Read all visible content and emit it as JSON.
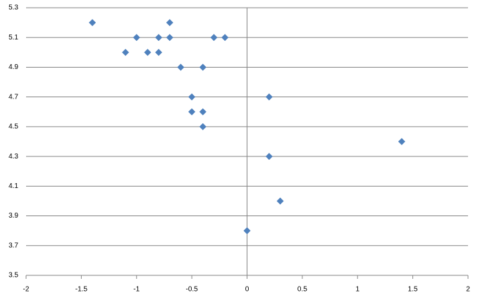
{
  "chart_data": {
    "type": "scatter",
    "x": [
      -1.4,
      -0.7,
      -1.0,
      -0.8,
      -0.7,
      -0.3,
      -0.2,
      -1.1,
      -0.9,
      -0.8,
      -0.6,
      -0.4,
      -0.5,
      0.2,
      -0.5,
      -0.4,
      -0.4,
      1.4,
      0.2,
      0.3,
      0
    ],
    "values": [
      5.2,
      5.2,
      5.1,
      5.1,
      5.1,
      5.1,
      5.1,
      5.0,
      5.0,
      5.0,
      4.9,
      4.9,
      4.7,
      4.7,
      4.6,
      4.6,
      4.5,
      4.4,
      4.3,
      4.0,
      3.8
    ],
    "color": "#4f81bd",
    "xlim": [
      -2,
      2
    ],
    "xticks": [
      -2,
      -1.5,
      -1,
      -0.5,
      0,
      0.5,
      1,
      1.5,
      2
    ],
    "ylim": [
      3.5,
      5.3
    ],
    "yticks": [
      3.5,
      3.7,
      3.9,
      4.1,
      4.3,
      4.5,
      4.7,
      4.9,
      5.1,
      5.3
    ],
    "grid": true
  }
}
